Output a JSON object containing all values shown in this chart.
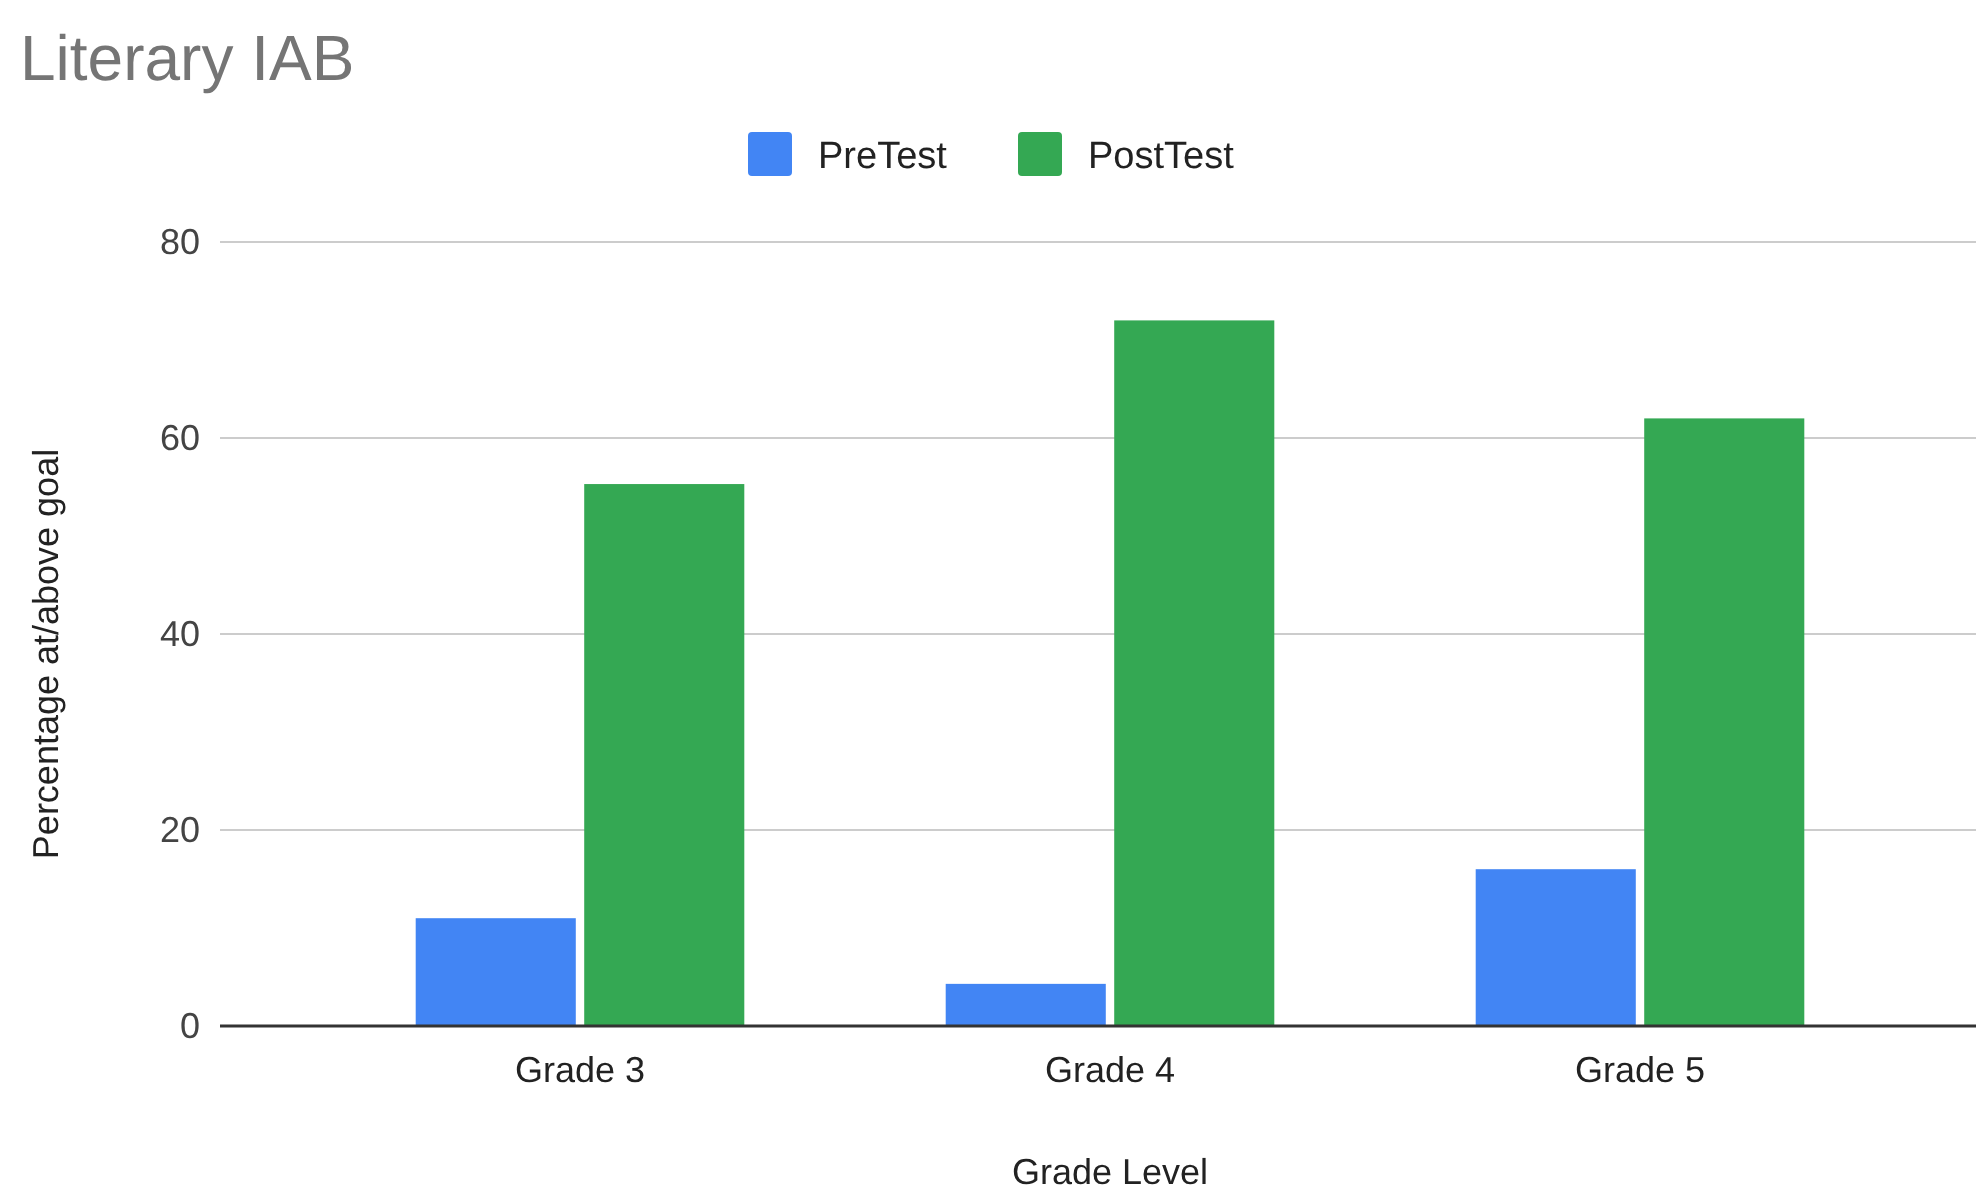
{
  "chart_data": {
    "type": "bar",
    "title": "Literary IAB",
    "xlabel": "Grade Level",
    "ylabel": "Percentage at/above goal",
    "categories": [
      "Grade 3",
      "Grade 4",
      "Grade 5"
    ],
    "series": [
      {
        "name": "PreTest",
        "color": "#4285f4",
        "values": [
          11,
          4.3,
          16
        ]
      },
      {
        "name": "PostTest",
        "color": "#34a853",
        "values": [
          55.3,
          72,
          62
        ]
      }
    ],
    "ylim": [
      0,
      80
    ],
    "yticks": [
      0,
      20,
      40,
      60,
      80
    ],
    "grid": "y",
    "legend": "top"
  }
}
